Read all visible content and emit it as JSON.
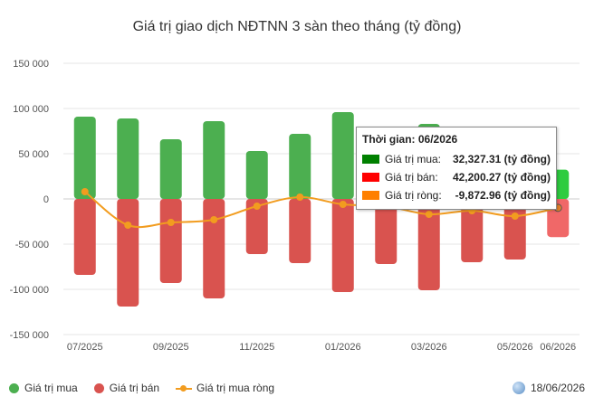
{
  "chart_data": {
    "type": "bar",
    "title": "Giá trị giao dịch NĐTNN 3 sàn theo tháng (tỷ đồng)",
    "categories": [
      "07/2025",
      "08/2025",
      "09/2025",
      "10/2025",
      "11/2025",
      "12/2025",
      "01/2026",
      "02/2026",
      "03/2026",
      "04/2026",
      "05/2026",
      "06/2026"
    ],
    "x_tick_labels": [
      "07/2025",
      "",
      "09/2025",
      "",
      "11/2025",
      "",
      "01/2026",
      "",
      "03/2026",
      "",
      "05/2026",
      "06/2026"
    ],
    "y_ticks": [
      150000,
      100000,
      50000,
      0,
      -50000,
      -100000,
      -150000
    ],
    "y_tick_labels": [
      "150 000",
      "100 000",
      "50 000",
      "0",
      "-50 000",
      "-100 000",
      "-150 000"
    ],
    "ylim": [
      -150000,
      150000
    ],
    "grid": true,
    "legend_position": "bottom-left",
    "series": [
      {
        "name": "Giá trị mua",
        "color": "#4caf50",
        "values": [
          91000,
          89000,
          66000,
          86000,
          53000,
          72000,
          96000,
          57000,
          83000,
          57000,
          36000,
          32327.31
        ]
      },
      {
        "name": "Giá trị bán",
        "color": "#d9534f",
        "values": [
          -84000,
          -119000,
          -93000,
          -110000,
          -61000,
          -71000,
          -103000,
          -72000,
          -101000,
          -70000,
          -67000,
          -42200.27
        ]
      },
      {
        "name": "Giá trị mua ròng",
        "color": "#f29c1f",
        "values": [
          8000,
          -29000,
          -26000,
          -23000,
          -8000,
          2000,
          -6000,
          -8000,
          -17000,
          -13000,
          -19000,
          -9872.96
        ]
      }
    ]
  },
  "tooltip": {
    "title": "Thời gian: 06/2026",
    "rows": [
      {
        "label": "Giá trị mua:",
        "value": "32,327.31 (tỷ đồng)",
        "color": "#008000"
      },
      {
        "label": "Giá trị bán:",
        "value": "42,200.27 (tỷ đồng)",
        "color": "#ff0000"
      },
      {
        "label": "Giá trị ròng:",
        "value": "-9,872.96 (tỷ đồng)",
        "color": "#ff8000"
      }
    ]
  },
  "legend": {
    "items": [
      {
        "label": "Giá trị mua",
        "color": "#4caf50"
      },
      {
        "label": "Giá trị bán",
        "color": "#d9534f"
      },
      {
        "label": "Giá trị mua ròng",
        "color": "#f29c1f"
      }
    ]
  },
  "date_stamp": "18/06/2026"
}
